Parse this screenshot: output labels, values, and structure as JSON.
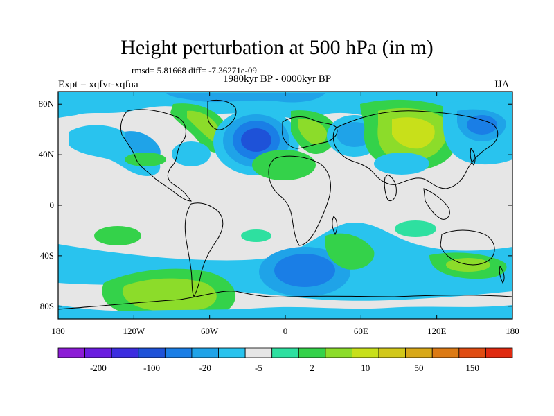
{
  "title": "Height perturbation at 500 hPa (in m)",
  "stats": "rmsd= 5.81668 diff= -7.36271e-09",
  "experiment": "Expt = xqfvr-xqfua",
  "period": "1980kyr BP - 0000kyr BP",
  "season": "JJA",
  "axes": {
    "lat_labels": [
      "80N",
      "40N",
      "0",
      "40S",
      "80S"
    ],
    "lat_values": [
      80,
      40,
      0,
      -40,
      -80
    ],
    "lon_labels": [
      "180",
      "120W",
      "60W",
      "0",
      "60E",
      "120E",
      "180"
    ],
    "lon_values": [
      -180,
      -120,
      -60,
      0,
      60,
      120,
      180
    ]
  },
  "colorbar": {
    "labels": [
      "-200",
      "-100",
      "-20",
      "-5",
      "2",
      "10",
      "50",
      "150"
    ],
    "colors": [
      "#8c1cd6",
      "#6a1ce0",
      "#3c2de0",
      "#1e52d8",
      "#1a7ee6",
      "#1fa3e8",
      "#29c3ee",
      "#e6e6e6",
      "#2ee0a0",
      "#34d24a",
      "#8cdc2a",
      "#c8e01a",
      "#d2c81a",
      "#d8a818",
      "#dc7a14",
      "#e04c12",
      "#e02a10"
    ]
  },
  "chart_data": {
    "type": "heatmap",
    "variable": "Height perturbation at 500 hPa (in m)",
    "xlim": [
      -180,
      180
    ],
    "ylim": [
      -90,
      90
    ],
    "contour_levels": [
      -200,
      -100,
      -20,
      -5,
      2,
      10,
      50,
      150
    ],
    "features": [
      {
        "region": "North Atlantic (~30W, 50N)",
        "value": -30
      },
      {
        "region": "Siberia (~80E, 55N)",
        "value": 15
      },
      {
        "region": "South Atlantic (~10W, 50S)",
        "value": -20
      },
      {
        "region": "South Pacific (~90W, 60S)",
        "value": 12
      },
      {
        "region": "North Pacific (~150E, 50N)",
        "value": -15
      }
    ]
  }
}
